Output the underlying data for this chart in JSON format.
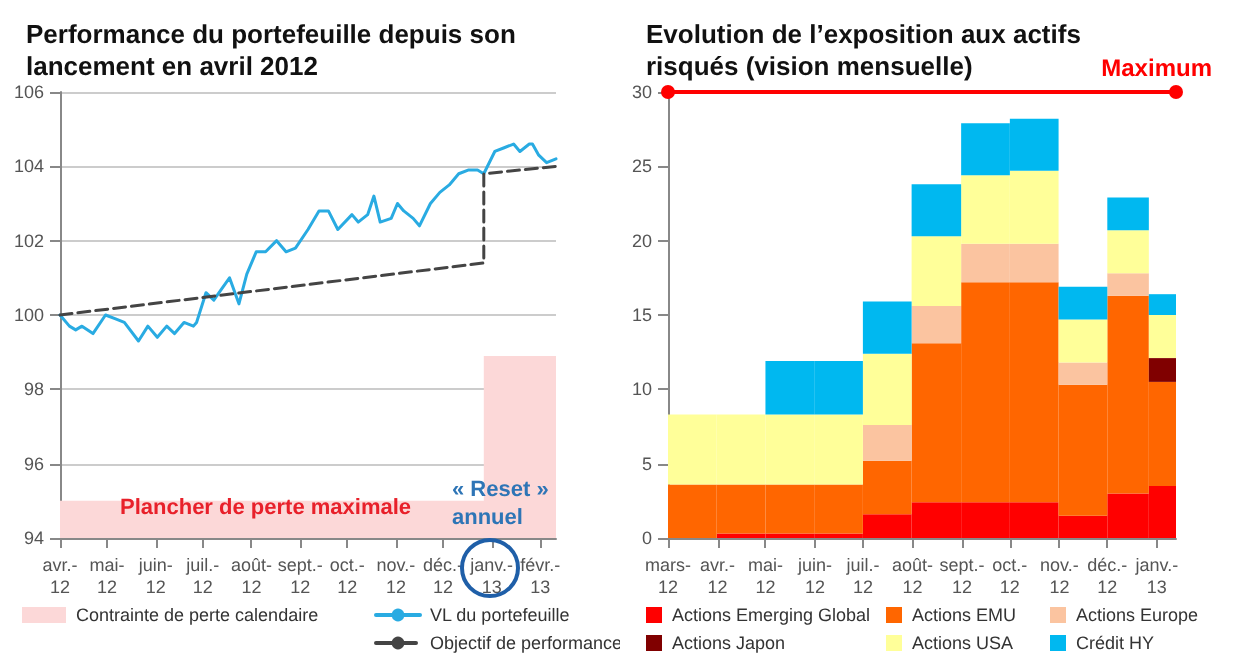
{
  "chart_data": [
    {
      "type": "line",
      "title": "Performance du portefeuille depuis son lancement en avril 2012",
      "xlim": [
        "2012-04-01",
        "2013-02-11"
      ],
      "ylim": [
        94,
        106
      ],
      "yticks": [
        94,
        96,
        98,
        100,
        102,
        104,
        106
      ],
      "xticks": [
        {
          "value": "2012-04-01",
          "label": "avr.-\n12"
        },
        {
          "value": "2012-05-01",
          "label": "mai-\n12"
        },
        {
          "value": "2012-06-01",
          "label": "juin-\n12"
        },
        {
          "value": "2012-07-01",
          "label": "juil.-\n12"
        },
        {
          "value": "2012-08-01",
          "label": "août-\n12"
        },
        {
          "value": "2012-09-01",
          "label": "sept.-\n12"
        },
        {
          "value": "2012-10-01",
          "label": "oct.-\n12"
        },
        {
          "value": "2012-11-01",
          "label": "nov.-\n12"
        },
        {
          "value": "2012-12-01",
          "label": "déc.-\n12"
        },
        {
          "value": "2013-01-01",
          "label": "janv.-\n13"
        },
        {
          "value": "2013-02-01",
          "label": "févr.-\n13"
        }
      ],
      "grid": "y",
      "legend": "bottom",
      "marker": "none",
      "annotations": [
        "Plancher de perte maximale",
        "« Reset »\nannuel"
      ],
      "series": [
        {
          "name": "Contrainte de perte calendaire",
          "type": "area",
          "color": "#fcd8d8",
          "x": [
            "2012-04-01",
            "2012-12-27",
            "2012-12-27",
            "2013-02-11"
          ],
          "values": [
            95,
            95,
            98.9,
            98.9
          ]
        },
        {
          "name": "VL du portefeuille",
          "type": "line",
          "color": "#29abe2",
          "x": [
            "2012-04-01",
            "2012-04-07",
            "2012-04-11",
            "2012-04-15",
            "2012-04-22",
            "2012-04-30",
            "2012-05-06",
            "2012-05-12",
            "2012-05-21",
            "2012-05-27",
            "2012-06-02",
            "2012-06-08",
            "2012-06-13",
            "2012-06-19",
            "2012-06-25",
            "2012-06-27",
            "2012-07-03",
            "2012-07-08",
            "2012-07-13",
            "2012-07-18",
            "2012-07-24",
            "2012-07-29",
            "2012-08-04",
            "2012-08-10",
            "2012-08-17",
            "2012-08-23",
            "2012-08-29",
            "2012-09-06",
            "2012-09-13",
            "2012-09-19",
            "2012-09-25",
            "2012-10-04",
            "2012-10-08",
            "2012-10-14",
            "2012-10-18",
            "2012-10-22",
            "2012-10-29",
            "2012-11-02",
            "2012-11-06",
            "2012-11-12",
            "2012-11-16",
            "2012-11-23",
            "2012-11-29",
            "2012-12-05",
            "2012-12-11",
            "2012-12-17",
            "2012-12-23",
            "2012-12-27",
            "2013-01-03",
            "2013-01-09",
            "2013-01-15",
            "2013-01-19",
            "2013-01-25",
            "2013-01-27",
            "2013-01-31",
            "2013-02-05",
            "2013-02-11"
          ],
          "values": [
            100.0,
            99.7,
            99.6,
            99.7,
            99.5,
            100.0,
            99.9,
            99.8,
            99.3,
            99.7,
            99.4,
            99.7,
            99.5,
            99.8,
            99.7,
            99.8,
            100.6,
            100.4,
            100.7,
            101.0,
            100.3,
            101.1,
            101.7,
            101.7,
            102.0,
            101.7,
            101.8,
            102.3,
            102.8,
            102.8,
            102.3,
            102.7,
            102.5,
            102.7,
            103.2,
            102.5,
            102.6,
            103.0,
            102.8,
            102.6,
            102.4,
            103.0,
            103.3,
            103.5,
            103.8,
            103.9,
            103.9,
            103.8,
            104.4,
            104.5,
            104.6,
            104.4,
            104.6,
            104.6,
            104.3,
            104.1,
            104.2
          ]
        },
        {
          "name": "Objectif de performance",
          "type": "line",
          "line_style": "dashed",
          "color": "#444444",
          "x": [
            "2012-04-01",
            "2012-12-27",
            "2012-12-27",
            "2013-02-11"
          ],
          "values": [
            100.0,
            101.4,
            103.8,
            104.0
          ]
        }
      ]
    },
    {
      "type": "bar",
      "stacked": true,
      "title": "Evolution de l’exposition aux actifs risqués (vision mensuelle)",
      "xlim": [
        "2012-03-01",
        "2013-01-13"
      ],
      "ylim": [
        0,
        30
      ],
      "yticks": [
        0,
        5,
        10,
        15,
        20,
        25,
        30
      ],
      "xticks": [
        {
          "value": "2012-03-01",
          "label": "mars-\n12"
        },
        {
          "value": "2012-04-01",
          "label": "avr.-\n12"
        },
        {
          "value": "2012-05-01",
          "label": "mai-\n12"
        },
        {
          "value": "2012-06-01",
          "label": "juin-\n12"
        },
        {
          "value": "2012-07-01",
          "label": "juil.-\n12"
        },
        {
          "value": "2012-08-01",
          "label": "août-\n12"
        },
        {
          "value": "2012-09-01",
          "label": "sept.-\n12"
        },
        {
          "value": "2012-10-01",
          "label": "oct.-\n12"
        },
        {
          "value": "2012-11-01",
          "label": "nov.-\n12"
        },
        {
          "value": "2012-12-01",
          "label": "déc.-\n12"
        },
        {
          "value": "2013-01-01",
          "label": "janv.-\n13"
        }
      ],
      "grid": false,
      "legend": "bottom",
      "ref_lines": [
        {
          "axis": "y",
          "value": 30,
          "label": "Maximum",
          "color": "#ff0000"
        }
      ],
      "x": [
        "2012-03-16",
        "2012-04-16",
        "2012-05-16",
        "2012-06-16",
        "2012-07-16",
        "2012-08-16",
        "2012-09-16",
        "2012-10-16",
        "2012-11-16",
        "2012-12-16",
        "2013-01-07"
      ],
      "series": [
        {
          "name": "Actions Emerging Global",
          "color": "#ff0000",
          "values": [
            0,
            0.3,
            0.3,
            0.3,
            1.6,
            2.4,
            2.4,
            2.4,
            1.5,
            3.0,
            3.5
          ]
        },
        {
          "name": "Actions EMU",
          "color": "#ff6600",
          "values": [
            3.6,
            3.3,
            3.3,
            3.3,
            3.6,
            10.7,
            14.8,
            14.8,
            8.8,
            13.3,
            7.0
          ]
        },
        {
          "name": "Actions Europe",
          "color": "#fbc4a0",
          "values": [
            0,
            0,
            0,
            0,
            2.4,
            2.5,
            2.6,
            2.6,
            1.5,
            1.5,
            0
          ]
        },
        {
          "name": "Actions Japon",
          "color": "#800000",
          "values": [
            0,
            0,
            0,
            0,
            0,
            0,
            0,
            0,
            0,
            0,
            1.6
          ]
        },
        {
          "name": "Actions USA",
          "color": "#ffff99",
          "values": [
            4.7,
            4.7,
            4.7,
            4.7,
            4.8,
            4.7,
            4.6,
            4.9,
            2.9,
            2.9,
            2.9
          ]
        },
        {
          "name": "Crédit HY",
          "color": "#00b8f0",
          "values": [
            0,
            0,
            3.6,
            3.6,
            3.5,
            3.5,
            3.5,
            3.5,
            2.2,
            2.2,
            1.4
          ]
        }
      ]
    }
  ]
}
